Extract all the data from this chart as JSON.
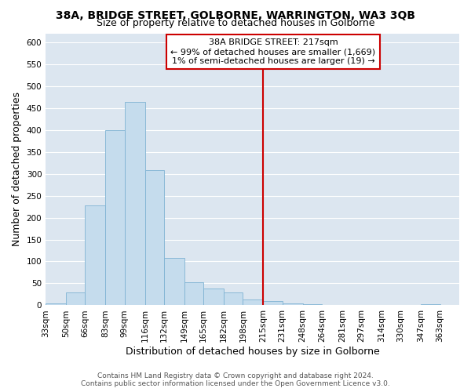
{
  "title": "38A, BRIDGE STREET, GOLBORNE, WARRINGTON, WA3 3QB",
  "subtitle": "Size of property relative to detached houses in Golborne",
  "xlabel": "Distribution of detached houses by size in Golborne",
  "ylabel": "Number of detached properties",
  "footer_lines": [
    "Contains HM Land Registry data © Crown copyright and database right 2024.",
    "Contains public sector information licensed under the Open Government Licence v3.0."
  ],
  "bin_labels": [
    "33sqm",
    "50sqm",
    "66sqm",
    "83sqm",
    "99sqm",
    "116sqm",
    "132sqm",
    "149sqm",
    "165sqm",
    "182sqm",
    "198sqm",
    "215sqm",
    "231sqm",
    "248sqm",
    "264sqm",
    "281sqm",
    "297sqm",
    "314sqm",
    "330sqm",
    "347sqm",
    "363sqm"
  ],
  "bin_edges": [
    33,
    50,
    66,
    83,
    99,
    116,
    132,
    149,
    165,
    182,
    198,
    215,
    231,
    248,
    264,
    281,
    297,
    314,
    330,
    347,
    363
  ],
  "bar_heights": [
    5,
    30,
    228,
    400,
    463,
    308,
    108,
    53,
    38,
    29,
    13,
    10,
    5,
    3,
    0,
    0,
    0,
    0,
    0,
    3
  ],
  "bar_color": "#c5dced",
  "bar_edge_color": "#7fb3d3",
  "vline_x": 215,
  "vline_color": "#cc0000",
  "ylim": [
    0,
    620
  ],
  "yticks": [
    0,
    50,
    100,
    150,
    200,
    250,
    300,
    350,
    400,
    450,
    500,
    550,
    600
  ],
  "annotation_title": "38A BRIDGE STREET: 217sqm",
  "annotation_line1": "← 99% of detached houses are smaller (1,669)",
  "annotation_line2": "1% of semi-detached houses are larger (19) →",
  "annotation_box_color": "#cc0000",
  "annotation_bg": "#ffffff",
  "plot_bg_color": "#dce6f0",
  "fig_bg_color": "#ffffff",
  "grid_color": "#ffffff",
  "title_fontsize": 10,
  "subtitle_fontsize": 9,
  "axis_label_fontsize": 9,
  "tick_fontsize": 7.5,
  "annotation_fontsize": 8,
  "footer_fontsize": 6.5
}
